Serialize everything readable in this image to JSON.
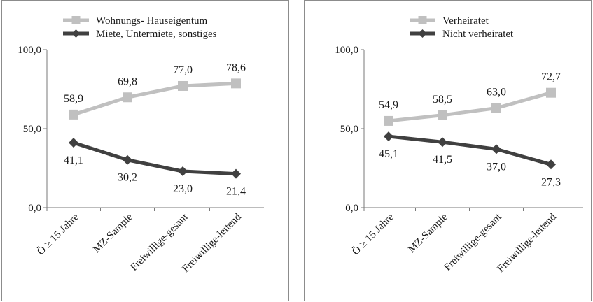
{
  "chart_data": [
    {
      "type": "line",
      "categories": [
        "Ö ≥ 15 Jahre",
        "MZ-Sample",
        "Freiwillige-gesant",
        "Freiwillige-leitend"
      ],
      "ylim": [
        0,
        100
      ],
      "yticks": [
        "0,0",
        "50,0",
        "100,0"
      ],
      "legend_position": "top",
      "series": [
        {
          "name": "Wohnungs- Hauseigentum",
          "values": [
            58.9,
            69.8,
            77.0,
            78.6
          ],
          "labels": [
            "58,9",
            "69,8",
            "77,0",
            "78,6"
          ],
          "color": "#c0c0c0",
          "marker": "square",
          "label_position": "above"
        },
        {
          "name": "Miete, Untermiete, sonstiges",
          "values": [
            41.1,
            30.2,
            23.0,
            21.4
          ],
          "labels": [
            "41,1",
            "30,2",
            "23,0",
            "21,4"
          ],
          "color": "#404040",
          "marker": "diamond",
          "label_position": "below"
        }
      ]
    },
    {
      "type": "line",
      "categories": [
        "Ö ≥ 15 Jahre",
        "MZ-Sample",
        "Freiwillige-gesant",
        "Freiwillige-leitend"
      ],
      "ylim": [
        0,
        100
      ],
      "yticks": [
        "0,0",
        "50,0",
        "100,0"
      ],
      "legend_position": "top",
      "series": [
        {
          "name": "Verheiratet",
          "values": [
            54.9,
            58.5,
            63.0,
            72.7
          ],
          "labels": [
            "54,9",
            "58,5",
            "63,0",
            "72,7"
          ],
          "color": "#c0c0c0",
          "marker": "square",
          "label_position": "above"
        },
        {
          "name": "Nicht verheiratet",
          "values": [
            45.1,
            41.5,
            37.0,
            27.3
          ],
          "labels": [
            "45,1",
            "41,5",
            "37,0",
            "27,3"
          ],
          "color": "#404040",
          "marker": "diamond",
          "label_position": "below"
        }
      ]
    }
  ]
}
